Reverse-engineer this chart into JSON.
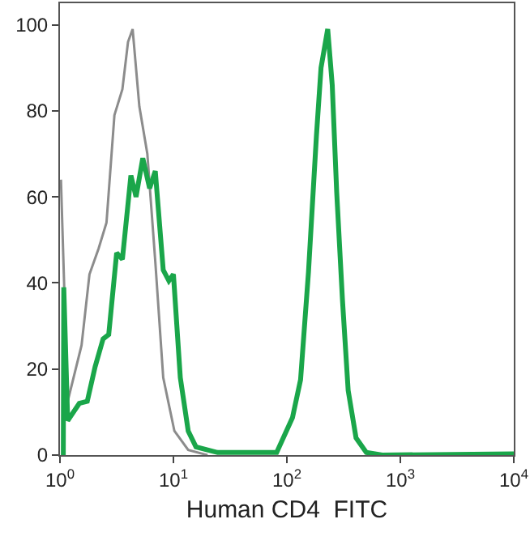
{
  "chart_data": {
    "type": "line",
    "xlabel": "Human CD4  FITC",
    "log": "x",
    "marker": "none",
    "line_style": "solid",
    "xlim": [
      1,
      10000
    ],
    "xticks": [
      {
        "value": 1,
        "label": "10$^{0}$"
      },
      {
        "value": 10,
        "label": "10$^{1}$"
      },
      {
        "value": 100,
        "label": "10$^{2}$"
      },
      {
        "value": 1000,
        "label": "10$^{3}$"
      },
      {
        "value": 10000,
        "label": "10$^{4}$"
      }
    ],
    "ylim": [
      0,
      105
    ],
    "yticks": [
      0,
      20,
      40,
      60,
      80,
      100
    ],
    "series": [
      {
        "color": "#8c8c8c",
        "x": [
          1.02,
          1.17,
          1.55,
          1.82,
          2.19,
          2.57,
          3.02,
          3.55,
          3.98,
          4.37,
          5.01,
          5.89,
          6.92,
          8.13,
          10.2,
          13.5,
          20
        ],
        "values": [
          64,
          12.5,
          25.5,
          42,
          48,
          54,
          79,
          85,
          96,
          99,
          81,
          70,
          45,
          18,
          5.6,
          1.2,
          0
        ]
      },
      {
        "color": "#1aa64a",
        "x": [
          1.07,
          1.08,
          1.17,
          1.48,
          1.74,
          2.04,
          2.4,
          2.69,
          3.16,
          3.55,
          4.22,
          4.68,
          5.37,
          6.17,
          6.92,
          8.13,
          9.12,
          10,
          11.5,
          13.5,
          15.8,
          24.5,
          42.7,
          81.3,
          112,
          132,
          155,
          182,
          200,
          229,
          251,
          275,
          309,
          347,
          407,
          501,
          692,
          10000
        ],
        "values": [
          0,
          39,
          8,
          12,
          12.5,
          20.5,
          27,
          28,
          47,
          45.5,
          65,
          60,
          69,
          62,
          66,
          43,
          40.5,
          42,
          18,
          5.6,
          1.9,
          0.6,
          0.6,
          0.6,
          8.7,
          17.5,
          42.5,
          74,
          90,
          99,
          86,
          61,
          36,
          15,
          4,
          0.6,
          0,
          0.3
        ]
      }
    ]
  }
}
